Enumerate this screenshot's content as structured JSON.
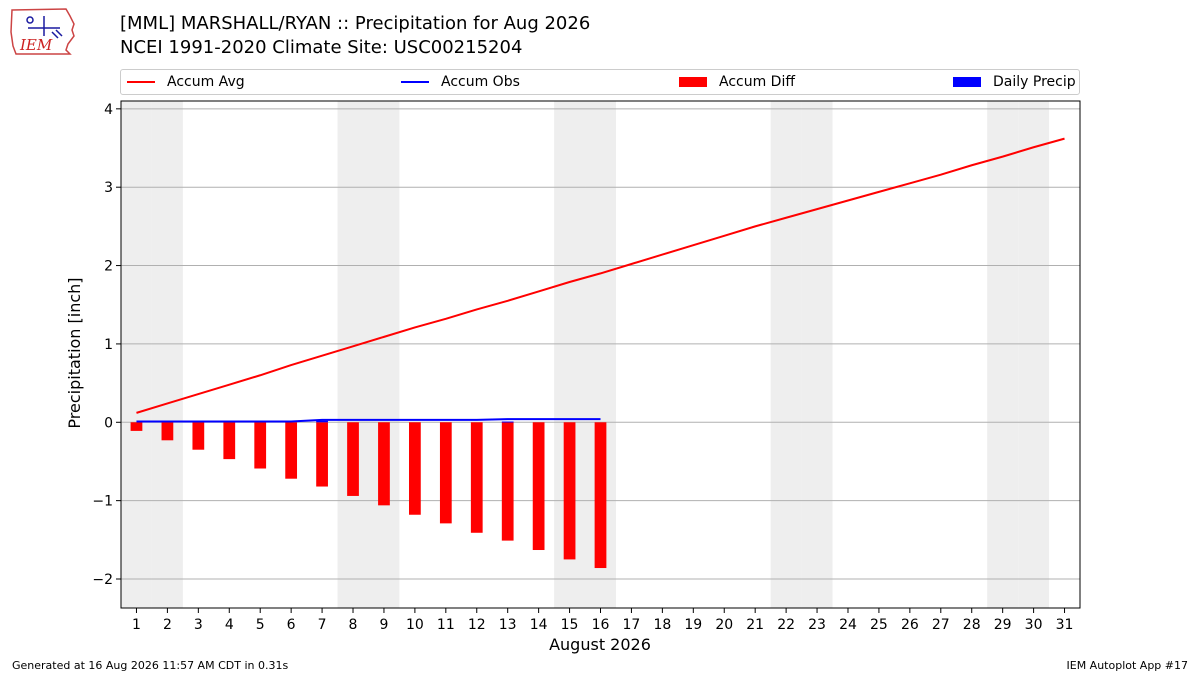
{
  "header": {
    "title_line1": "[MML] MARSHALL/RYAN :: Precipitation for Aug 2026",
    "title_line2": "NCEI 1991-2020 Climate Site: USC00215204",
    "logo_text": "IEM"
  },
  "footer": {
    "generated": "Generated at 16 Aug 2026 11:57 AM CDT in 0.31s",
    "app": "IEM Autoplot App #17"
  },
  "legend": {
    "placement": "top",
    "items": [
      {
        "label": "Accum Avg",
        "kind": "line",
        "color": "#ff0000"
      },
      {
        "label": "Accum Obs",
        "kind": "line",
        "color": "#0000ff"
      },
      {
        "label": "Accum Diff",
        "kind": "patch",
        "color": "#ff0000"
      },
      {
        "label": "Daily Precip",
        "kind": "patch",
        "color": "#0000ff"
      }
    ]
  },
  "chart_data": {
    "type": "line",
    "xlabel": "August 2026",
    "ylabel": "Precipitation [inch]",
    "x": [
      1,
      2,
      3,
      4,
      5,
      6,
      7,
      8,
      9,
      10,
      11,
      12,
      13,
      14,
      15,
      16,
      17,
      18,
      19,
      20,
      21,
      22,
      23,
      24,
      25,
      26,
      27,
      28,
      29,
      30,
      31
    ],
    "xlim": [
      0.5,
      31.5
    ],
    "ylim": [
      -2.37,
      4.1
    ],
    "yticks": [
      -2,
      -1,
      0,
      1,
      2,
      3,
      4
    ],
    "ytick_labels": [
      "−2",
      "−1",
      "0",
      "1",
      "2",
      "3",
      "4"
    ],
    "grid": "y",
    "weekend_shading_days": [
      1,
      2,
      8,
      9,
      15,
      16,
      22,
      23,
      29,
      30
    ],
    "shade_color": "#eeeeee",
    "series": [
      {
        "name": "Accum Avg",
        "kind": "line",
        "color": "#ff0000",
        "x": [
          1,
          2,
          3,
          4,
          5,
          6,
          7,
          8,
          9,
          10,
          11,
          12,
          13,
          14,
          15,
          16,
          17,
          18,
          19,
          20,
          21,
          22,
          23,
          24,
          25,
          26,
          27,
          28,
          29,
          30,
          31
        ],
        "values": [
          0.12,
          0.24,
          0.36,
          0.48,
          0.6,
          0.73,
          0.85,
          0.97,
          1.09,
          1.21,
          1.32,
          1.44,
          1.55,
          1.67,
          1.79,
          1.9,
          2.02,
          2.14,
          2.26,
          2.38,
          2.5,
          2.61,
          2.72,
          2.83,
          2.94,
          3.05,
          3.16,
          3.28,
          3.39,
          3.51,
          3.62
        ]
      },
      {
        "name": "Accum Obs",
        "kind": "line",
        "color": "#0000ff",
        "x": [
          1,
          2,
          3,
          4,
          5,
          6,
          7,
          8,
          9,
          10,
          11,
          12,
          13,
          14,
          15,
          16
        ],
        "values": [
          0.01,
          0.01,
          0.01,
          0.01,
          0.01,
          0.01,
          0.03,
          0.03,
          0.03,
          0.03,
          0.03,
          0.03,
          0.04,
          0.04,
          0.04,
          0.04
        ]
      },
      {
        "name": "Accum Diff",
        "kind": "bar",
        "color": "#ff0000",
        "x": [
          1,
          2,
          3,
          4,
          5,
          6,
          7,
          8,
          9,
          10,
          11,
          12,
          13,
          14,
          15,
          16
        ],
        "values": [
          -0.11,
          -0.23,
          -0.35,
          -0.47,
          -0.59,
          -0.72,
          -0.82,
          -0.94,
          -1.06,
          -1.18,
          -1.29,
          -1.41,
          -1.51,
          -1.63,
          -1.75,
          -1.86
        ]
      },
      {
        "name": "Daily Precip",
        "kind": "bar",
        "color": "#0000ff",
        "x": [
          7,
          13
        ],
        "values": [
          0.02,
          0.01
        ]
      }
    ]
  }
}
